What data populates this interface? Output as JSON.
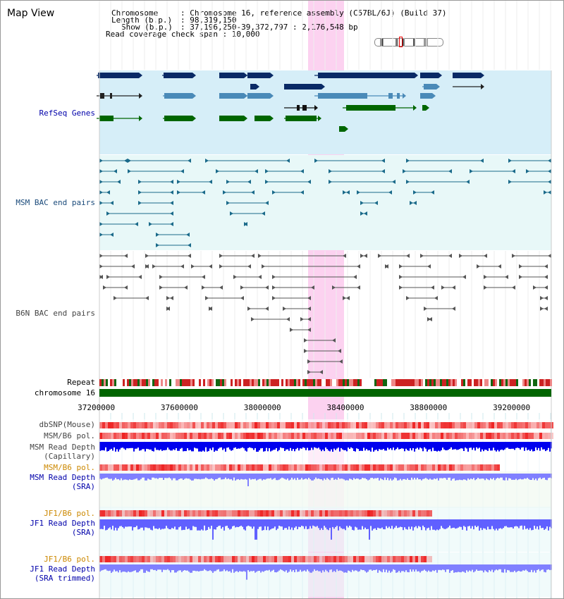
{
  "title": "Map View",
  "header": {
    "chromosome_key": "Chromosome",
    "chromosome_value": ": Chromosome 16, reference assembly (C57BL/6J) (Build 37)",
    "length_key": "Length (b.p.)",
    "length_value": ": 98,319,150",
    "show_key": "Show (b.p.)",
    "show_value": ": 37,196,250-39,372,797 : 2,176,548 bp",
    "read_coverage": "Read coverage check span : 10,000"
  },
  "labels": {
    "refseq": "RefSeq Genes",
    "msm_bac": "MSM BAC end pairs",
    "b6n_bac": "B6N BAC end pairs",
    "repeat": "Repeat",
    "chromosome": "chromosome 16",
    "dbsnp": "dbSNP(Mouse)",
    "msm_b6_pol_1": "MSM/B6 pol.",
    "msm_depth_cap_1": "MSM Read Depth",
    "msm_depth_cap_2": "(Capillary)",
    "msm_b6_pol_2": "MSM/B6 pol.",
    "msm_depth_sra_1": "MSM Read Depth",
    "msm_depth_sra_2": "(SRA)",
    "jf1_b6_pol_1": "JF1/B6 pol.",
    "jf1_depth_sra_1": "JF1 Read Depth",
    "jf1_depth_sra_2": "(SRA)",
    "jf1_b6_pol_2": "JF1/B6 pol.",
    "jf1_depth_trim_1": "JF1 Read Depth",
    "jf1_depth_trim_2": "(SRA trimmed)"
  },
  "axis": {
    "ticks": [
      "37200000",
      "37600000",
      "38000000",
      "38400000",
      "38800000",
      "39200000"
    ],
    "tick_values": [
      37200000,
      37600000,
      38000000,
      38400000,
      38800000,
      39200000
    ],
    "range_bp": [
      37196250,
      39372797
    ]
  },
  "highlight": {
    "start_bp": 38200000,
    "end_bp": 38375000
  },
  "colors": {
    "refseq_band": "#d6eef8",
    "bac_band": "#e8f8f8",
    "chromosome_bar": "#006400",
    "highlight": "#fcd2f0",
    "label_blue": "#0000aa",
    "label_orange": "#cc8800",
    "depth_blue": "#0000ee",
    "depth_light": "#8080ff",
    "snp_red": "#ee2222",
    "gene_navy": "#0a2a66",
    "gene_steel": "#4a8ab8",
    "gene_green": "#006600",
    "bac_teal": "#1a6a8a",
    "bac_gray": "#555555"
  }
}
